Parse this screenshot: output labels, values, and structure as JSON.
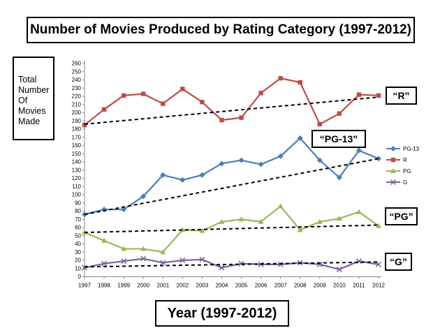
{
  "chart_data": {
    "type": "line",
    "title": "Number of Movies Produced by Rating Category (1997-2012)",
    "xlabel": "Year (1997-2012)",
    "ylabel": "Total Number Of Movies Made",
    "x": [
      "1997",
      "1998",
      "1999",
      "2000",
      "2001",
      "2002",
      "2003",
      "2004",
      "2005",
      "2006",
      "2007",
      "2008",
      "2009",
      "2010",
      "2011",
      "2012"
    ],
    "ylim": [
      0,
      260
    ],
    "yticks": [
      0,
      10,
      20,
      30,
      40,
      50,
      60,
      70,
      80,
      90,
      100,
      110,
      120,
      130,
      140,
      150,
      160,
      170,
      180,
      190,
      200,
      210,
      220,
      230,
      240,
      250,
      260
    ],
    "legend_position": "right",
    "series": [
      {
        "name": "PG-13",
        "color": "#4a7ebb",
        "marker": "diamond",
        "values": [
          76,
          82,
          82,
          98,
          124,
          118,
          124,
          138,
          142,
          137,
          147,
          169,
          142,
          121,
          154,
          144
        ],
        "trend": [
          76,
          144
        ],
        "trend_label": "“PG-13”"
      },
      {
        "name": "R",
        "color": "#be4b48",
        "marker": "square",
        "values": [
          185,
          204,
          221,
          223,
          211,
          229,
          213,
          191,
          194,
          224,
          242,
          237,
          186,
          199,
          222,
          221
        ],
        "trend": [
          186,
          219
        ],
        "trend_label": "“R”"
      },
      {
        "name": "PG",
        "color": "#98b954",
        "marker": "triangle",
        "values": [
          54,
          44,
          34,
          34,
          30,
          57,
          56,
          67,
          70,
          67,
          86,
          57,
          67,
          71,
          79,
          62
        ],
        "trend": [
          54,
          63
        ],
        "trend_label": "“PG”"
      },
      {
        "name": "G",
        "color": "#7d60a0",
        "marker": "x",
        "values": [
          11,
          16,
          19,
          22,
          17,
          20,
          21,
          11,
          16,
          15,
          15,
          17,
          15,
          9,
          19,
          15
        ],
        "trend": [
          12,
          18
        ],
        "trend_label": "“G”"
      }
    ]
  }
}
